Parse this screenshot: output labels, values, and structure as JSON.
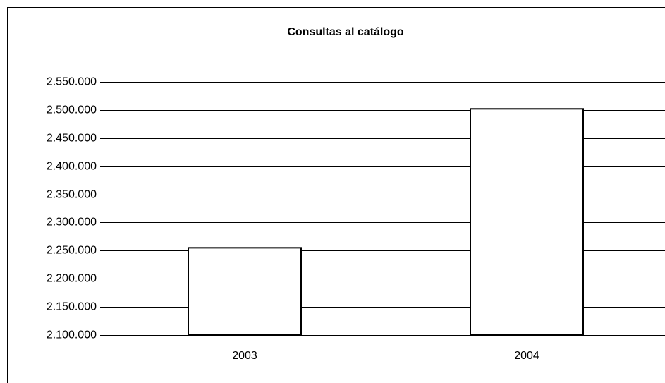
{
  "chart_data": {
    "type": "bar",
    "title": "Consultas al catálogo",
    "categories": [
      "2003",
      "2004"
    ],
    "values": [
      2255000,
      2502000
    ],
    "color": "#ffffff",
    "ylim": [
      2100000,
      2550000
    ],
    "yticks": [
      {
        "value": 2100000,
        "label": "2.100.000"
      },
      {
        "value": 2150000,
        "label": "2.150.000"
      },
      {
        "value": 2200000,
        "label": "2.200.000"
      },
      {
        "value": 2250000,
        "label": "2.250.000"
      },
      {
        "value": 2300000,
        "label": "2.300.000"
      },
      {
        "value": 2350000,
        "label": "2.350.000"
      },
      {
        "value": 2400000,
        "label": "2.400.000"
      },
      {
        "value": 2450000,
        "label": "2.450.000"
      },
      {
        "value": 2500000,
        "label": "2.500.000"
      },
      {
        "value": 2550000,
        "label": "2.550.000"
      }
    ],
    "grid": true
  }
}
